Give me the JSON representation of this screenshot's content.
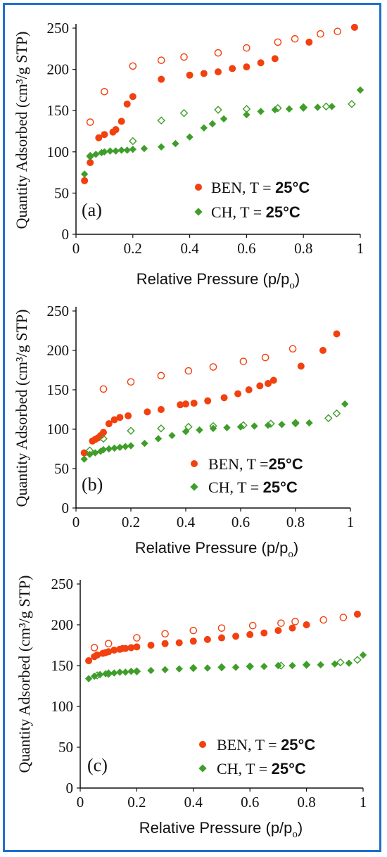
{
  "colors": {
    "border": "#1f6fd0",
    "ben": "#f2400f",
    "ch": "#3f9e2a"
  },
  "shared": {
    "ylabel": "Quantity Adsorbed (cm³/g STP)",
    "xlabel_main": "Relative Pressure (p/p",
    "xlabel_sub": "o",
    "xlabel_close": ")"
  },
  "chart_data": [
    {
      "type": "scatter",
      "panel_label": "(a)",
      "xlim": [
        0,
        1
      ],
      "ylim": [
        0,
        250
      ],
      "x_ticks": [
        "0",
        "0.2",
        "0.4",
        "0.6",
        "0.8",
        "1"
      ],
      "y_ticks": [
        "0",
        "50",
        "100",
        "150",
        "200",
        "250"
      ],
      "legend": [
        {
          "name": "BEN, T = ",
          "value": "25°C"
        },
        {
          "name": "CH, T = ",
          "value": "25°C"
        }
      ],
      "series": [
        {
          "name": "BEN adsorption",
          "color": "#f2400f",
          "marker": "circle",
          "filled": true,
          "x": [
            0.03,
            0.05,
            0.08,
            0.1,
            0.13,
            0.14,
            0.16,
            0.18,
            0.2,
            0.3,
            0.4,
            0.45,
            0.5,
            0.55,
            0.6,
            0.65,
            0.7,
            0.82,
            0.98
          ],
          "y": [
            65,
            87,
            117,
            121,
            124,
            127,
            137,
            158,
            167,
            188,
            193,
            195,
            197,
            201,
            203,
            208,
            213,
            233,
            251
          ]
        },
        {
          "name": "BEN desorption",
          "color": "#f2400f",
          "marker": "circle",
          "filled": false,
          "x": [
            0.05,
            0.1,
            0.2,
            0.3,
            0.38,
            0.5,
            0.6,
            0.71,
            0.77,
            0.86,
            0.92
          ],
          "y": [
            136,
            173,
            204,
            211,
            215,
            220,
            226,
            233,
            237,
            243,
            246
          ]
        },
        {
          "name": "CH adsorption",
          "color": "#3f9e2a",
          "marker": "diamond",
          "filled": true,
          "x": [
            0.03,
            0.05,
            0.07,
            0.09,
            0.1,
            0.12,
            0.14,
            0.16,
            0.18,
            0.2,
            0.24,
            0.3,
            0.35,
            0.4,
            0.45,
            0.48,
            0.52,
            0.6,
            0.65,
            0.7,
            0.75,
            0.8,
            0.85,
            0.9,
            1.0
          ],
          "y": [
            73,
            94,
            97,
            99,
            100,
            101,
            101,
            102,
            102,
            103,
            104,
            106,
            110,
            118,
            129,
            134,
            140,
            145,
            149,
            151,
            152,
            153,
            154,
            155,
            175
          ]
        },
        {
          "name": "CH desorption",
          "color": "#3f9e2a",
          "marker": "diamond",
          "filled": false,
          "x": [
            0.05,
            0.2,
            0.3,
            0.38,
            0.5,
            0.6,
            0.71,
            0.8,
            0.88,
            0.97
          ],
          "y": [
            95,
            113,
            138,
            147,
            151,
            152,
            153,
            154,
            155,
            158
          ]
        }
      ]
    },
    {
      "type": "scatter",
      "panel_label": "(b)",
      "xlim": [
        0,
        1
      ],
      "ylim": [
        0,
        250
      ],
      "x_ticks": [
        "0",
        "0.2",
        "0.4",
        "0.6",
        "0.8",
        "1"
      ],
      "y_ticks": [
        "0",
        "50",
        "100",
        "150",
        "200",
        "250"
      ],
      "legend": [
        {
          "name": "BEN, T =",
          "value": "25°C"
        },
        {
          "name": "CH, T = ",
          "value": "25°C"
        }
      ],
      "series": [
        {
          "name": "BEN adsorption",
          "color": "#f2400f",
          "marker": "circle",
          "filled": true,
          "x": [
            0.03,
            0.06,
            0.07,
            0.08,
            0.09,
            0.1,
            0.12,
            0.14,
            0.16,
            0.19,
            0.26,
            0.31,
            0.38,
            0.4,
            0.43,
            0.48,
            0.54,
            0.59,
            0.63,
            0.67,
            0.7,
            0.72,
            0.82,
            0.9,
            0.95
          ],
          "y": [
            70,
            85,
            87,
            89,
            92,
            96,
            107,
            112,
            115,
            117,
            122,
            125,
            131,
            132,
            133,
            136,
            140,
            145,
            150,
            155,
            158,
            162,
            180,
            200,
            221
          ]
        },
        {
          "name": "BEN desorption",
          "color": "#f2400f",
          "marker": "circle",
          "filled": false,
          "x": [
            0.1,
            0.2,
            0.31,
            0.41,
            0.5,
            0.61,
            0.69,
            0.79
          ],
          "y": [
            151,
            160,
            168,
            174,
            179,
            186,
            191,
            202
          ]
        },
        {
          "name": "CH adsorption",
          "color": "#3f9e2a",
          "marker": "diamond",
          "filled": true,
          "x": [
            0.03,
            0.05,
            0.07,
            0.09,
            0.1,
            0.12,
            0.14,
            0.16,
            0.18,
            0.2,
            0.25,
            0.3,
            0.35,
            0.4,
            0.45,
            0.5,
            0.55,
            0.6,
            0.65,
            0.7,
            0.75,
            0.8,
            0.85,
            0.98
          ],
          "y": [
            62,
            68,
            70,
            72,
            74,
            75,
            76,
            77,
            78,
            79,
            82,
            88,
            92,
            97,
            99,
            101,
            102,
            103,
            104,
            105,
            106,
            107,
            108,
            132
          ]
        },
        {
          "name": "CH desorption",
          "color": "#3f9e2a",
          "marker": "diamond",
          "filled": false,
          "x": [
            0.05,
            0.1,
            0.2,
            0.31,
            0.41,
            0.5,
            0.61,
            0.71,
            0.8,
            0.92,
            0.95
          ],
          "y": [
            73,
            88,
            98,
            101,
            103,
            104,
            105,
            107,
            108,
            114,
            120
          ]
        }
      ]
    },
    {
      "type": "scatter",
      "panel_label": "(c)",
      "xlim": [
        0,
        1
      ],
      "ylim": [
        0,
        250
      ],
      "x_ticks": [
        "0",
        "0.2",
        "0.4",
        "0.6",
        "0.8",
        "1"
      ],
      "y_ticks": [
        "0",
        "50",
        "100",
        "150",
        "200",
        "250"
      ],
      "legend": [
        {
          "name": "BEN, T = ",
          "value": "25°C"
        },
        {
          "name": "CH, T = ",
          "value": "25°C"
        }
      ],
      "series": [
        {
          "name": "BEN adsorption",
          "color": "#f2400f",
          "marker": "circle",
          "filled": true,
          "x": [
            0.03,
            0.05,
            0.06,
            0.08,
            0.09,
            0.1,
            0.12,
            0.14,
            0.15,
            0.16,
            0.18,
            0.2,
            0.25,
            0.3,
            0.35,
            0.4,
            0.45,
            0.5,
            0.55,
            0.6,
            0.65,
            0.7,
            0.75,
            0.8,
            0.98
          ],
          "y": [
            156,
            161,
            163,
            165,
            166,
            167,
            169,
            170,
            171,
            171,
            172,
            173,
            175,
            177,
            178,
            180,
            182,
            184,
            186,
            188,
            190,
            193,
            196,
            200,
            213
          ]
        },
        {
          "name": "BEN desorption",
          "color": "#f2400f",
          "marker": "circle",
          "filled": false,
          "x": [
            0.05,
            0.1,
            0.2,
            0.3,
            0.4,
            0.5,
            0.61,
            0.71,
            0.76,
            0.86,
            0.93
          ],
          "y": [
            172,
            177,
            184,
            189,
            193,
            196,
            199,
            202,
            204,
            206,
            209
          ]
        },
        {
          "name": "CH adsorption",
          "color": "#3f9e2a",
          "marker": "diamond",
          "filled": true,
          "x": [
            0.03,
            0.05,
            0.07,
            0.09,
            0.1,
            0.12,
            0.14,
            0.16,
            0.18,
            0.2,
            0.25,
            0.3,
            0.35,
            0.4,
            0.45,
            0.5,
            0.55,
            0.6,
            0.65,
            0.7,
            0.75,
            0.8,
            0.85,
            0.9,
            0.95,
            1.0
          ],
          "y": [
            134,
            137,
            139,
            140,
            141,
            141,
            142,
            142,
            143,
            143,
            144,
            145,
            146,
            147,
            147,
            148,
            148,
            149,
            149,
            150,
            150,
            151,
            151,
            152,
            153,
            163
          ]
        },
        {
          "name": "CH desorption",
          "color": "#3f9e2a",
          "marker": "diamond",
          "filled": false,
          "x": [
            0.06,
            0.1,
            0.2,
            0.4,
            0.5,
            0.6,
            0.71,
            0.8,
            0.92,
            0.98
          ],
          "y": [
            138,
            140,
            143,
            147,
            148,
            149,
            150,
            151,
            154,
            157
          ]
        }
      ]
    }
  ]
}
